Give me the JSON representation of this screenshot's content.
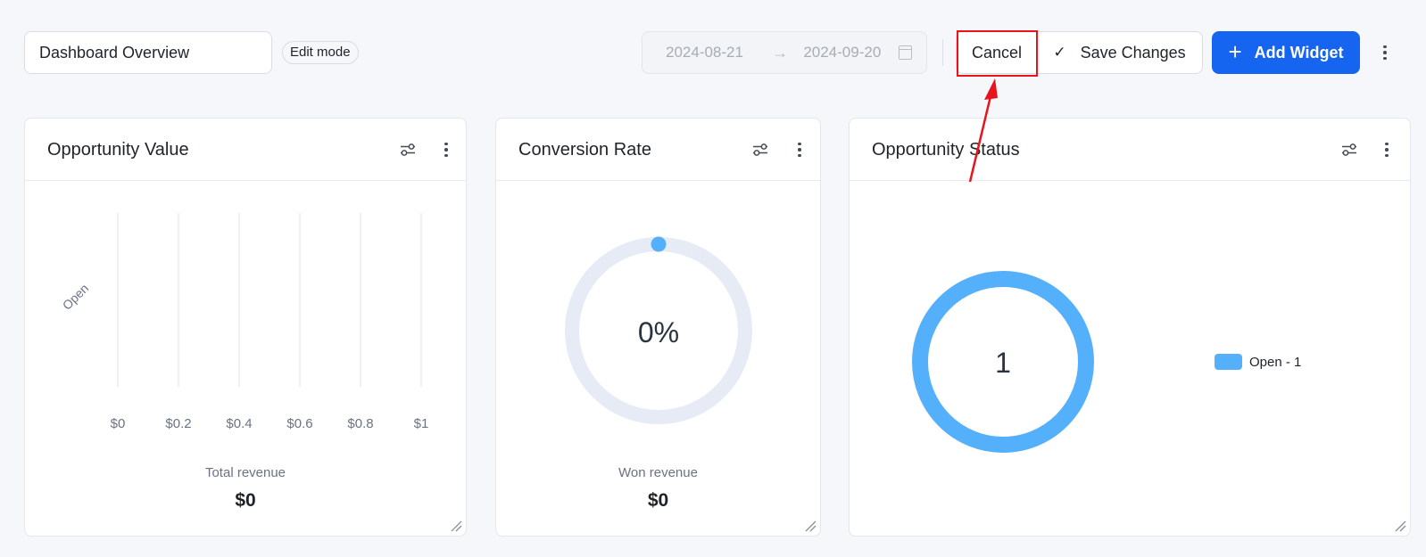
{
  "header": {
    "dashboard_name": "Dashboard Overview",
    "mode_badge": "Edit mode",
    "date_start": "2024-08-21",
    "date_end": "2024-09-20",
    "cancel_label": "Cancel",
    "save_label": "Save Changes",
    "add_widget_label": "Add Widget"
  },
  "colors": {
    "accent": "#1665f0",
    "annotation": "#e8141b",
    "chart_blue": "#55b0fb",
    "ring_track": "#e6ebf6"
  },
  "widgets": [
    {
      "title": "Opportunity Value",
      "footer_label": "Total revenue",
      "footer_value": "$0"
    },
    {
      "title": "Conversion Rate",
      "center_value": "0%",
      "footer_label": "Won revenue",
      "footer_value": "$0"
    },
    {
      "title": "Opportunity Status",
      "center_value": "1",
      "legend_label": "Open - 1"
    }
  ],
  "chart_data": [
    {
      "type": "bar",
      "orientation": "horizontal",
      "categories": [
        "Open"
      ],
      "values": [
        0
      ],
      "x_ticks": [
        "$0",
        "$0.2",
        "$0.4",
        "$0.6",
        "$0.8",
        "$1"
      ],
      "xlim": [
        0,
        1
      ],
      "grid": true
    },
    {
      "type": "pie",
      "style": "gauge-ring",
      "categories": [
        "Won"
      ],
      "values": [
        0
      ],
      "unit": "%"
    },
    {
      "type": "pie",
      "style": "donut",
      "categories": [
        "Open"
      ],
      "values": [
        1
      ]
    }
  ]
}
